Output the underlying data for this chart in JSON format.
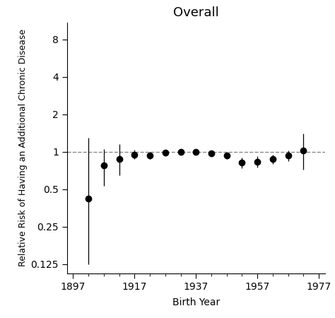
{
  "title": "Overall",
  "xlabel": "Birth Year",
  "ylabel": "Relative Risk of Having an Additional Chronic Disease",
  "x_values": [
    1902,
    1907,
    1912,
    1917,
    1922,
    1927,
    1932,
    1937,
    1942,
    1947,
    1952,
    1957,
    1962,
    1967,
    1972
  ],
  "y_values": [
    0.42,
    0.78,
    0.87,
    0.95,
    0.93,
    0.98,
    1.0,
    1.0,
    0.97,
    0.93,
    0.82,
    0.83,
    0.87,
    0.93,
    1.02
  ],
  "y_lower": [
    0.125,
    0.53,
    0.65,
    0.88,
    0.87,
    0.93,
    0.96,
    0.96,
    0.92,
    0.88,
    0.74,
    0.75,
    0.8,
    0.84,
    0.72
  ],
  "y_upper": [
    1.3,
    1.05,
    1.15,
    1.03,
    1.0,
    1.03,
    1.04,
    1.04,
    1.02,
    0.98,
    0.9,
    0.92,
    0.95,
    1.02,
    1.4
  ],
  "xticks_major": [
    1897,
    1917,
    1937,
    1957,
    1977
  ],
  "xticks_minor": [
    1902,
    1907,
    1912,
    1922,
    1927,
    1932,
    1942,
    1947,
    1952,
    1962,
    1967,
    1972
  ],
  "yticks": [
    0.125,
    0.25,
    0.5,
    1,
    2,
    4,
    8
  ],
  "ytick_labels": [
    "0.125",
    "0.25",
    "0.5",
    "1",
    "2",
    "4",
    "8"
  ],
  "ylim": [
    0.105,
    11.0
  ],
  "xlim": [
    1895,
    1979
  ],
  "reference_line": 1.0,
  "point_color": "#000000",
  "line_color": "#000000",
  "dashed_color": "#888888",
  "background_color": "#ffffff",
  "title_fontsize": 13,
  "label_fontsize": 10,
  "tick_fontsize": 10
}
